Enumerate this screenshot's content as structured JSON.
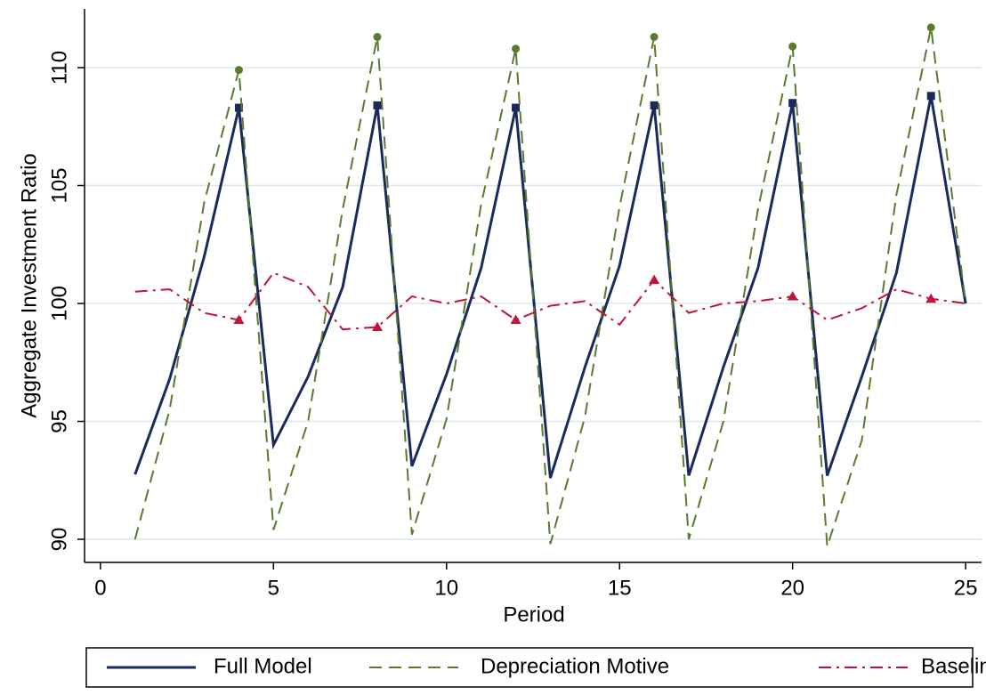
{
  "chart_data": {
    "type": "line",
    "x_label": "Period",
    "y_label": "Aggregate Investment Ratio",
    "x": [
      1,
      2,
      3,
      4,
      5,
      6,
      7,
      8,
      9,
      10,
      11,
      12,
      13,
      14,
      15,
      16,
      17,
      18,
      19,
      20,
      21,
      22,
      23,
      24,
      25
    ],
    "series": [
      {
        "name": "Full Model",
        "color": "#1a2a5a",
        "dash": "solid",
        "marker": "square",
        "marker_every": 4,
        "values": [
          92.75,
          96.8,
          102.0,
          108.3,
          94.0,
          96.9,
          100.7,
          108.4,
          93.1,
          97.0,
          101.5,
          108.3,
          92.6,
          97.3,
          101.6,
          108.4,
          92.7,
          97.3,
          101.5,
          108.5,
          92.7,
          96.9,
          101.3,
          108.8,
          100.0
        ]
      },
      {
        "name": "Depreciation Motive",
        "color": "#5a7a2e",
        "dash": "dashed",
        "marker": "circle",
        "marker_every": 4,
        "values": [
          90.0,
          95.5,
          104.3,
          109.9,
          90.4,
          95.0,
          104.0,
          111.3,
          90.2,
          95.1,
          104.2,
          110.8,
          89.8,
          95.2,
          104.1,
          111.3,
          90.0,
          95.0,
          104.0,
          110.9,
          89.7,
          94.2,
          104.6,
          111.7,
          100.0
        ]
      },
      {
        "name": "Baseline",
        "color": "#c0143c",
        "dash": "dashdot",
        "marker": "triangle",
        "marker_every": 4,
        "values": [
          100.5,
          100.6,
          99.6,
          99.3,
          101.3,
          100.7,
          98.9,
          99.0,
          100.3,
          100.0,
          100.3,
          99.3,
          99.9,
          100.1,
          99.1,
          101.0,
          99.6,
          100.0,
          100.1,
          100.3,
          99.3,
          99.8,
          100.6,
          100.2,
          100.0
        ]
      }
    ],
    "xlim": [
      -0.46,
      25.46
    ],
    "xticks": [
      0,
      5,
      10,
      15,
      20,
      25
    ],
    "ylim": [
      89.02,
      112.49
    ],
    "yticks": [
      90,
      95,
      100,
      105,
      110
    ],
    "grid": true,
    "legend": "bottom"
  }
}
